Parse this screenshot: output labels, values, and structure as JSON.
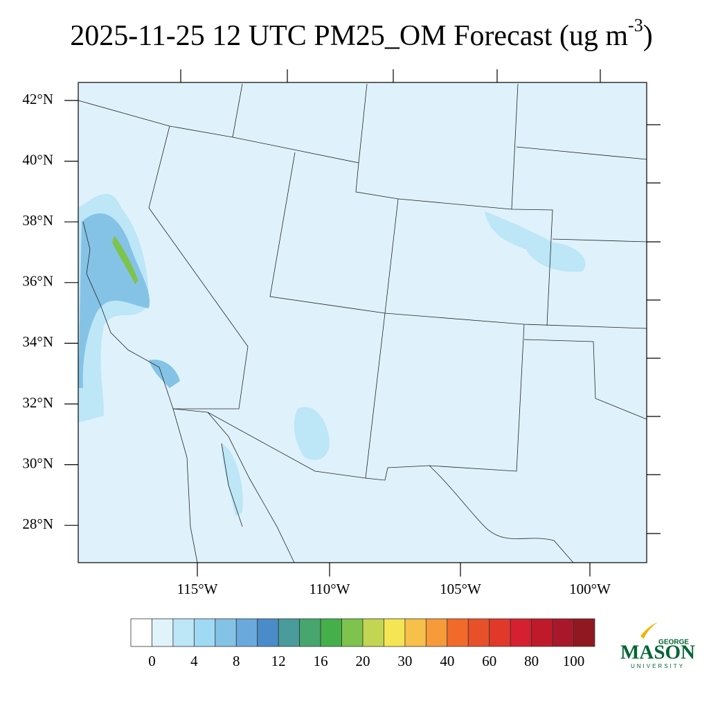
{
  "title": "2025-11-25 12 UTC PM25_OM Forecast (ug m",
  "title_superscript": "-3",
  "title_end": ")",
  "map": {
    "lat_labels": [
      "42°N",
      "40°N",
      "38°N",
      "36°N",
      "34°N",
      "32°N",
      "30°N",
      "28°N"
    ],
    "lon_labels": [
      "115°W",
      "110°W",
      "105°W",
      "100°W"
    ]
  },
  "colorbar": {
    "labels": [
      0,
      4,
      8,
      12,
      16,
      20,
      30,
      40,
      60,
      80,
      100
    ],
    "colors": [
      "#ffffff",
      "#e0f3fb",
      "#bde6f7",
      "#a0d9f4",
      "#85c3e6",
      "#6aa9dc",
      "#4a8cc9",
      "#4a9b9b",
      "#46a66d",
      "#45b04a",
      "#7ec34d",
      "#c2d653",
      "#f5e555",
      "#f7c04a",
      "#f79a3a",
      "#f26a2a",
      "#e8502a",
      "#e0392a",
      "#d42030",
      "#c01a2a",
      "#a8182a",
      "#901820"
    ]
  },
  "logo": {
    "top": "GEORGE",
    "main": "MASON",
    "bottom": "UNIVERSITY"
  }
}
